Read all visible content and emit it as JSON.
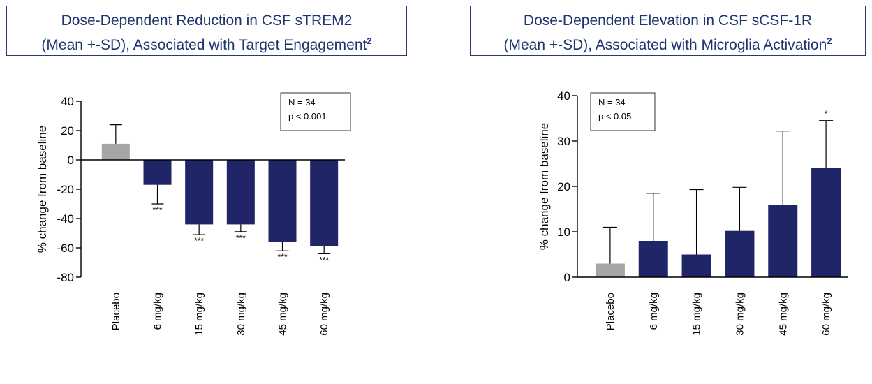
{
  "titles": {
    "left": {
      "line1": "Dose-Dependent Reduction in CSF sTREM2",
      "line2": "(Mean +-SD), Associated with Target Engagement",
      "sup": "2"
    },
    "right": {
      "line1": "Dose-Dependent Elevation in CSF sCSF-1R",
      "line2": "(Mean +-SD), Associated with Microglia Activation",
      "sup": "2"
    }
  },
  "colors": {
    "placebo": "#a6a6a6",
    "dose": "#1f2566",
    "title_border": "#2a3a6e",
    "title_text": "#1f3570"
  },
  "chart_data": [
    {
      "type": "bar",
      "title": "Dose-Dependent Reduction in CSF sTREM2 (Mean +-SD), Associated with Target Engagement",
      "categories": [
        "Placebo",
        "6 mg/kg",
        "15 mg/kg",
        "30 mg/kg",
        "45 mg/kg",
        "60 mg/kg"
      ],
      "values": [
        11,
        -17,
        -44,
        -44,
        -56,
        -59
      ],
      "error_upper": [
        24,
        null,
        null,
        null,
        null,
        null
      ],
      "error_lower": [
        null,
        -30,
        -51,
        -49,
        -62,
        -64
      ],
      "significance": [
        "",
        "***",
        "***",
        "***",
        "***",
        "***"
      ],
      "xlabel": "",
      "ylabel": "% change from baseline",
      "ylim": [
        -80,
        40
      ],
      "yticks": [
        40,
        20,
        0,
        -20,
        -40,
        -60,
        -80
      ],
      "ytick_labels": [
        "40",
        "20",
        "0",
        "-20",
        "-40",
        "-60",
        "-80"
      ],
      "legend": {
        "line1": "N = 34",
        "line2": "p < 0.001",
        "placement": "top-right"
      },
      "grid": false
    },
    {
      "type": "bar",
      "title": "Dose-Dependent Elevation in CSF sCSF-1R (Mean +-SD), Associated with Microglia Activation",
      "categories": [
        "Placebo",
        "6 mg/kg",
        "15 mg/kg",
        "30 mg/kg",
        "45 mg/kg",
        "60 mg/kg"
      ],
      "values": [
        3,
        8,
        5,
        10.2,
        16,
        24
      ],
      "error_upper": [
        11,
        18.5,
        19.3,
        19.8,
        32.2,
        34.5
      ],
      "error_lower": [
        null,
        null,
        null,
        null,
        null,
        null
      ],
      "significance": [
        "",
        "",
        "",
        "",
        "",
        "*"
      ],
      "xlabel": "",
      "ylabel": "% change from baseline",
      "ylim": [
        0,
        40
      ],
      "yticks": [
        0,
        10,
        20,
        30,
        40
      ],
      "ytick_labels": [
        "0",
        "10",
        "20",
        "30",
        "40"
      ],
      "legend": {
        "line1": "N = 34",
        "line2": "p < 0.05",
        "placement": "top-left"
      },
      "grid": false
    }
  ]
}
